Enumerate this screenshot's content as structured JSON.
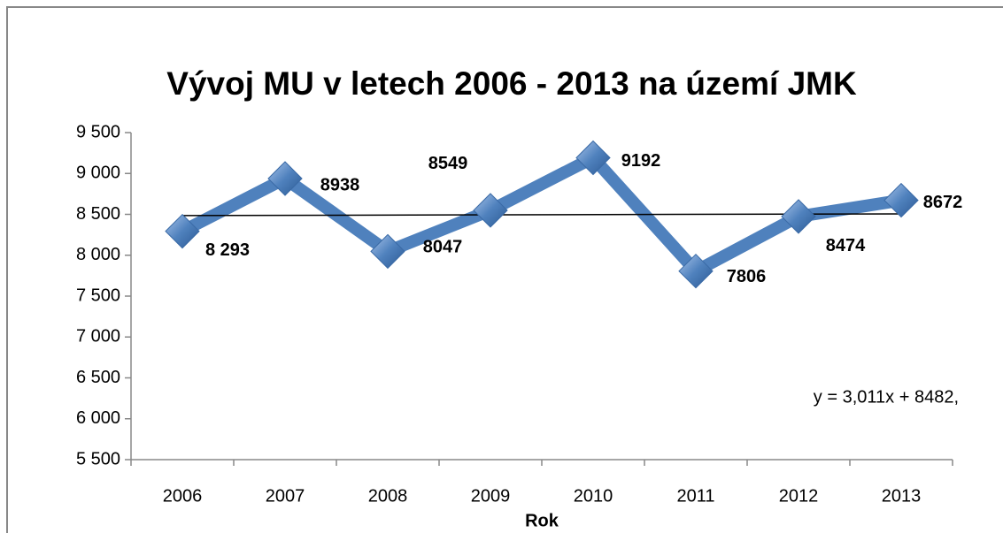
{
  "chart_data": {
    "type": "line",
    "title": "Vývoj MU v letech 2006 - 2013  na území JMK",
    "x_label": "Rok",
    "categories": [
      "2006",
      "2007",
      "2008",
      "2009",
      "2010",
      "2011",
      "2012",
      "2013"
    ],
    "series": [
      {
        "name": "MU",
        "color": "#4f81bd",
        "values": [
          8293,
          8938,
          8047,
          8549,
          9192,
          7806,
          8474,
          8672
        ],
        "value_labels": [
          "8 293",
          "8938",
          "8047",
          "8549",
          "9192",
          "7806",
          "8474",
          "8672"
        ]
      }
    ],
    "ylim": [
      5500,
      9500
    ],
    "yticks": [
      {
        "value": 5500,
        "label": "5 500"
      },
      {
        "value": 6000,
        "label": "6 000"
      },
      {
        "value": 6500,
        "label": "6 500"
      },
      {
        "value": 7000,
        "label": "7 000"
      },
      {
        "value": 7500,
        "label": "7 500"
      },
      {
        "value": 8000,
        "label": "8 000"
      },
      {
        "value": 8500,
        "label": "8 500"
      },
      {
        "value": 9000,
        "label": "9 000"
      },
      {
        "value": 9500,
        "label": "9 500"
      }
    ],
    "trendline": {
      "slope": 3.011,
      "intercept": 8482,
      "equation": "y = 3,011x + 8482,"
    }
  }
}
